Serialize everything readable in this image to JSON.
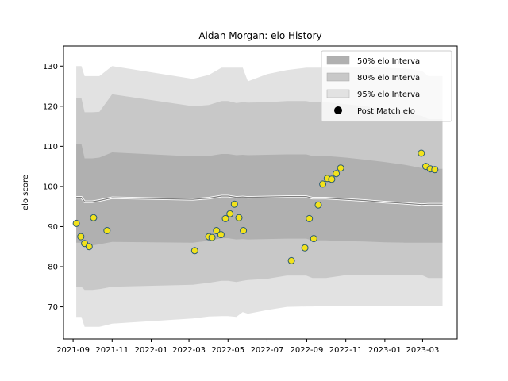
{
  "chart_data": {
    "type": "scatter",
    "title": "Aidan Morgan: elo History",
    "xlabel": "",
    "ylabel": "elo score",
    "ylim": [
      62,
      135
    ],
    "yticks": [
      70,
      80,
      90,
      100,
      110,
      120,
      130
    ],
    "xlim": [
      "2021-08-17",
      "2023-04-24"
    ],
    "xticks": [
      "2021-09",
      "2021-11",
      "2022-01",
      "2022-03",
      "2022-05",
      "2022-07",
      "2022-09",
      "2022-11",
      "2023-01",
      "2023-03"
    ],
    "colors": {
      "band50": "#b0b0b0",
      "band80": "#c8c8c8",
      "band95": "#e2e2e2",
      "mean": "#7f7f7f",
      "point_fill": "#f2e21c",
      "point_edge": "#2b5b73"
    },
    "legend": {
      "position": "upper right",
      "items": [
        {
          "label": "50% elo Interval",
          "kind": "band50"
        },
        {
          "label": "80% elo Interval",
          "kind": "band80"
        },
        {
          "label": "95% elo Interval",
          "kind": "band95"
        },
        {
          "label": "Post Match elo",
          "kind": "point"
        }
      ]
    },
    "band_dates": [
      "2021-09-06",
      "2021-09-14",
      "2021-09-19",
      "2021-10-01",
      "2021-10-12",
      "2021-11-01",
      "2022-03-07",
      "2022-04-01",
      "2022-04-21",
      "2022-05-01",
      "2022-05-14",
      "2022-05-24",
      "2022-06-01",
      "2022-07-01",
      "2022-08-01",
      "2022-08-31",
      "2022-09-10",
      "2022-09-20",
      "2022-10-01",
      "2022-11-01",
      "2022-12-01",
      "2023-01-01",
      "2023-02-01",
      "2023-02-28",
      "2023-03-10",
      "2023-04-01"
    ],
    "mean": [
      97.3,
      97.3,
      96.2,
      96.2,
      96.5,
      97.2,
      96.8,
      97.1,
      97.6,
      97.6,
      97.3,
      97.4,
      97.3,
      97.4,
      97.5,
      97.5,
      97.1,
      97.1,
      97.1,
      96.8,
      96.5,
      96.1,
      95.8,
      95.5,
      95.6,
      95.6
    ],
    "lo50": [
      86.0,
      86.0,
      85.3,
      85.3,
      85.6,
      86.2,
      86.0,
      86.5,
      87.1,
      87.1,
      86.8,
      86.9,
      86.8,
      86.9,
      87.0,
      87.0,
      86.6,
      86.6,
      86.6,
      86.4,
      86.3,
      86.1,
      86.0,
      86.0,
      86.0,
      86.0
    ],
    "hi50": [
      110.5,
      110.5,
      107.0,
      107.0,
      107.2,
      108.5,
      107.5,
      107.6,
      108.1,
      108.1,
      107.8,
      107.9,
      107.8,
      107.9,
      108.0,
      108.0,
      107.6,
      107.6,
      107.6,
      107.2,
      106.7,
      106.1,
      105.4,
      104.6,
      104.4,
      104.4
    ],
    "lo80": [
      75.0,
      75.0,
      74.2,
      74.2,
      74.4,
      75.0,
      75.5,
      76.0,
      76.5,
      76.5,
      76.2,
      76.5,
      76.7,
      77.0,
      77.8,
      77.8,
      77.2,
      77.2,
      77.2,
      77.9,
      77.9,
      77.9,
      77.9,
      77.9,
      77.2,
      77.2
    ],
    "hi80": [
      122.0,
      122.0,
      118.5,
      118.5,
      118.6,
      123.0,
      120.0,
      120.3,
      121.3,
      121.3,
      120.8,
      121.0,
      120.9,
      121.0,
      121.3,
      121.3,
      121.0,
      121.0,
      121.0,
      120.5,
      120.0,
      119.2,
      118.5,
      117.6,
      116.8,
      116.8
    ],
    "lo95": [
      67.5,
      67.5,
      65.0,
      65.0,
      65.0,
      65.8,
      67.1,
      67.6,
      67.7,
      67.7,
      67.5,
      68.7,
      68.3,
      69.2,
      70.0,
      70.1,
      70.1,
      70.2,
      70.2,
      70.2,
      70.2,
      70.2,
      70.2,
      70.2,
      70.2,
      70.2
    ],
    "hi95": [
      130.0,
      130.0,
      127.5,
      127.5,
      127.5,
      130.0,
      126.8,
      127.8,
      129.6,
      129.6,
      129.6,
      129.6,
      126.2,
      128.0,
      129.0,
      129.6,
      129.6,
      129.6,
      129.6,
      129.6,
      129.6,
      129.6,
      129.4,
      128.8,
      127.5,
      127.5
    ],
    "points": [
      {
        "x": "2021-09-06",
        "y": 90.8
      },
      {
        "x": "2021-09-13",
        "y": 87.5
      },
      {
        "x": "2021-09-19",
        "y": 85.8
      },
      {
        "x": "2021-09-26",
        "y": 85.0
      },
      {
        "x": "2021-10-03",
        "y": 92.2
      },
      {
        "x": "2021-10-24",
        "y": 89.0
      },
      {
        "x": "2022-03-10",
        "y": 84.0
      },
      {
        "x": "2022-04-01",
        "y": 87.5
      },
      {
        "x": "2022-04-06",
        "y": 87.3
      },
      {
        "x": "2022-04-13",
        "y": 89.0
      },
      {
        "x": "2022-04-20",
        "y": 88.0
      },
      {
        "x": "2022-04-27",
        "y": 92.0
      },
      {
        "x": "2022-05-04",
        "y": 93.2
      },
      {
        "x": "2022-05-11",
        "y": 95.6
      },
      {
        "x": "2022-05-18",
        "y": 92.2
      },
      {
        "x": "2022-05-25",
        "y": 89.0
      },
      {
        "x": "2022-08-08",
        "y": 81.5
      },
      {
        "x": "2022-08-29",
        "y": 84.7
      },
      {
        "x": "2022-09-05",
        "y": 92.0
      },
      {
        "x": "2022-09-12",
        "y": 87.0
      },
      {
        "x": "2022-09-19",
        "y": 95.4
      },
      {
        "x": "2022-09-26",
        "y": 100.6
      },
      {
        "x": "2022-10-03",
        "y": 102.0
      },
      {
        "x": "2022-10-10",
        "y": 101.8
      },
      {
        "x": "2022-10-17",
        "y": 103.2
      },
      {
        "x": "2022-10-24",
        "y": 104.6
      },
      {
        "x": "2023-02-27",
        "y": 108.3
      },
      {
        "x": "2023-03-06",
        "y": 105.0
      },
      {
        "x": "2023-03-13",
        "y": 104.4
      },
      {
        "x": "2023-03-20",
        "y": 104.2
      }
    ]
  }
}
